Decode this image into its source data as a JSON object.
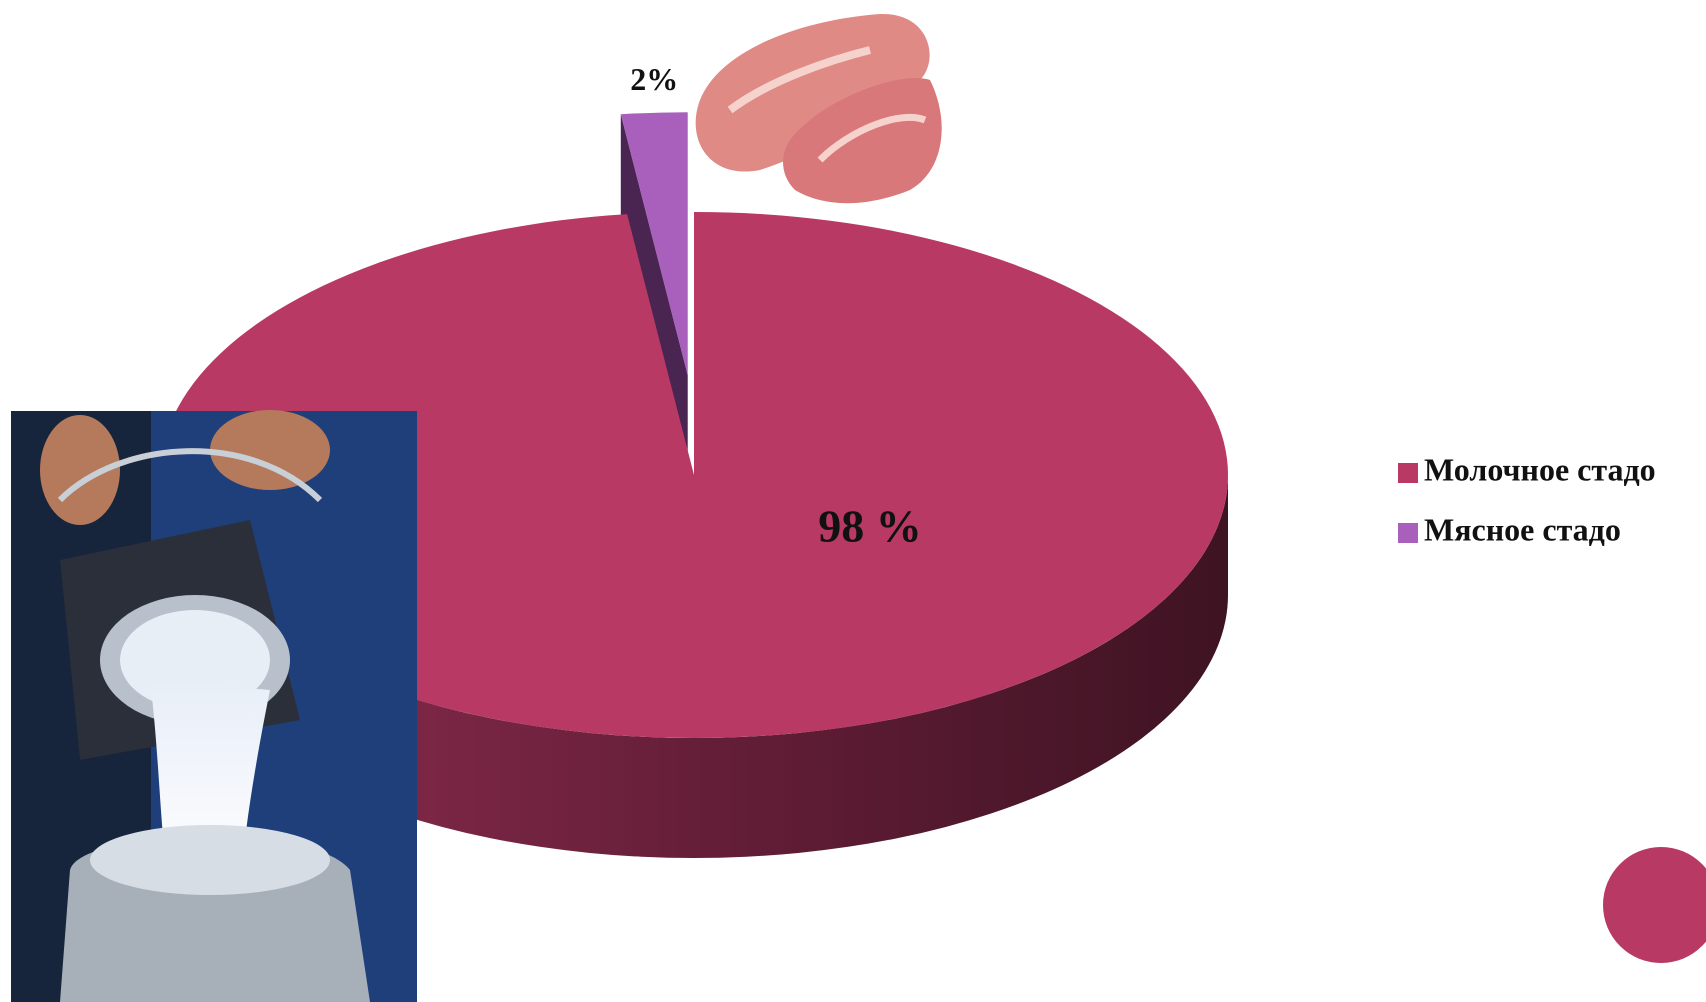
{
  "chart_data": {
    "type": "pie",
    "categories": [
      "Молочное стадо",
      "Мясное стадо"
    ],
    "values": [
      98,
      2
    ],
    "value_labels": [
      "98 %",
      "2%"
    ],
    "colors": [
      "#b83a64",
      "#a95fbc"
    ],
    "legend": "right"
  }
}
